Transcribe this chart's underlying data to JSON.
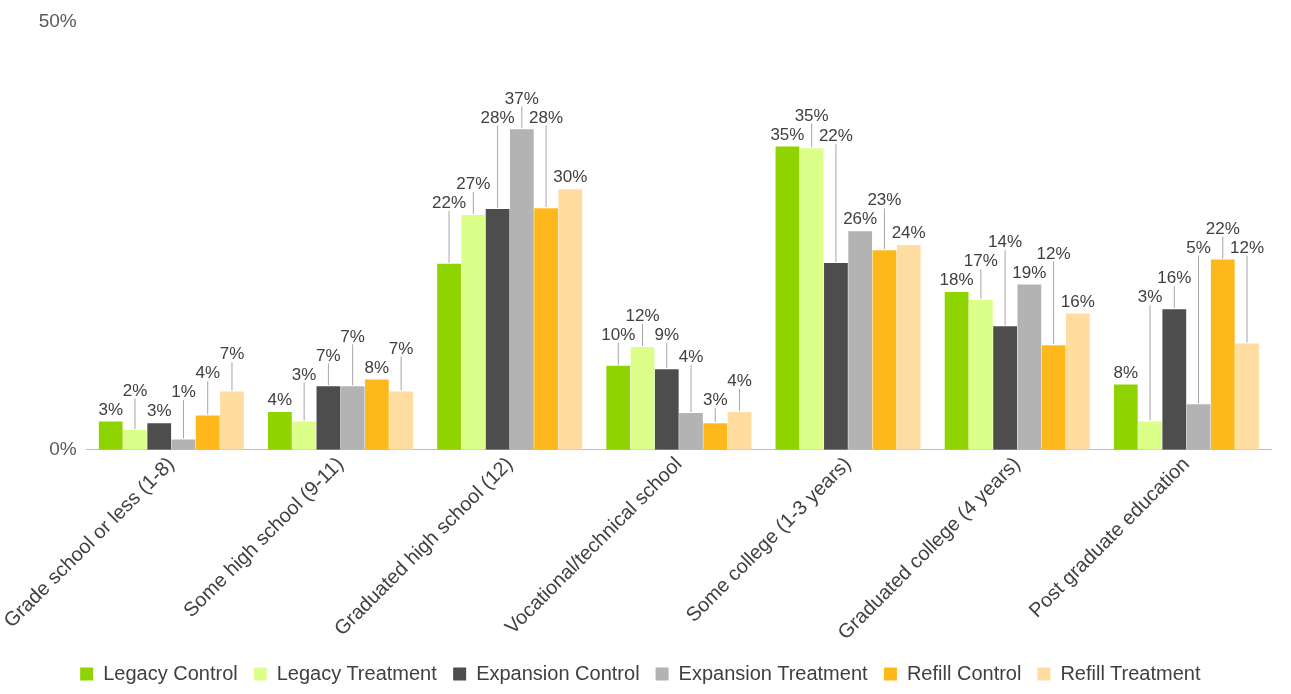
{
  "chart_data": {
    "type": "bar",
    "categories": [
      "Grade school or less (1-8)",
      "Some high school (9-11)",
      "Graduated high school (12)",
      "Vocational/technical school",
      "Some college (1-3 years)",
      "Graduated college (4 years)",
      "Post graduate education"
    ],
    "series": [
      {
        "name": "Legacy Control",
        "color": "#8fd400",
        "values": [
          3.3,
          4.4,
          21.7,
          9.8,
          35.4,
          18.4,
          7.6
        ],
        "value_labels": [
          "3%",
          "4%",
          "22%",
          "10%",
          "35%",
          "18%",
          "8%"
        ]
      },
      {
        "name": "Legacy Treatment",
        "color": "#dcff8a",
        "values": [
          2.3,
          3.3,
          27.4,
          12.0,
          35.2,
          17.5,
          3.3
        ],
        "value_labels": [
          "2%",
          "3%",
          "27%",
          "12%",
          "35%",
          "17%",
          "3%"
        ]
      },
      {
        "name": "Expansion Control",
        "color": "#4d4d4d",
        "values": [
          3.1,
          7.4,
          28.1,
          9.4,
          21.8,
          14.4,
          16.4
        ],
        "value_labels": [
          "3%",
          "7%",
          "28%",
          "9%",
          "22%",
          "14%",
          "16%"
        ]
      },
      {
        "name": "Expansion Treatment",
        "color": "#b3b3b3",
        "values": [
          1.2,
          7.4,
          37.4,
          4.3,
          25.5,
          19.3,
          5.3
        ],
        "value_labels": [
          "1%",
          "7%",
          "37%",
          "4%",
          "26%",
          "19%",
          "5%"
        ]
      },
      {
        "name": "Refill Control",
        "color": "#ffb81c",
        "values": [
          4.0,
          8.2,
          28.2,
          3.1,
          23.3,
          12.2,
          22.2
        ],
        "value_labels": [
          "4%",
          "8%",
          "28%",
          "3%",
          "23%",
          "12%",
          "22%"
        ]
      },
      {
        "name": "Refill Treatment",
        "color": "#ffdca0",
        "values": [
          6.8,
          6.8,
          30.4,
          4.4,
          23.9,
          15.9,
          12.4
        ],
        "value_labels": [
          "7%",
          "7%",
          "30%",
          "4%",
          "24%",
          "16%",
          "12%"
        ]
      }
    ],
    "ylim": [
      0,
      50
    ],
    "yticks": [
      {
        "value": 0,
        "label": "0%"
      },
      {
        "value": 50,
        "label": "50%"
      }
    ],
    "grid": false,
    "legend": "bottom"
  }
}
